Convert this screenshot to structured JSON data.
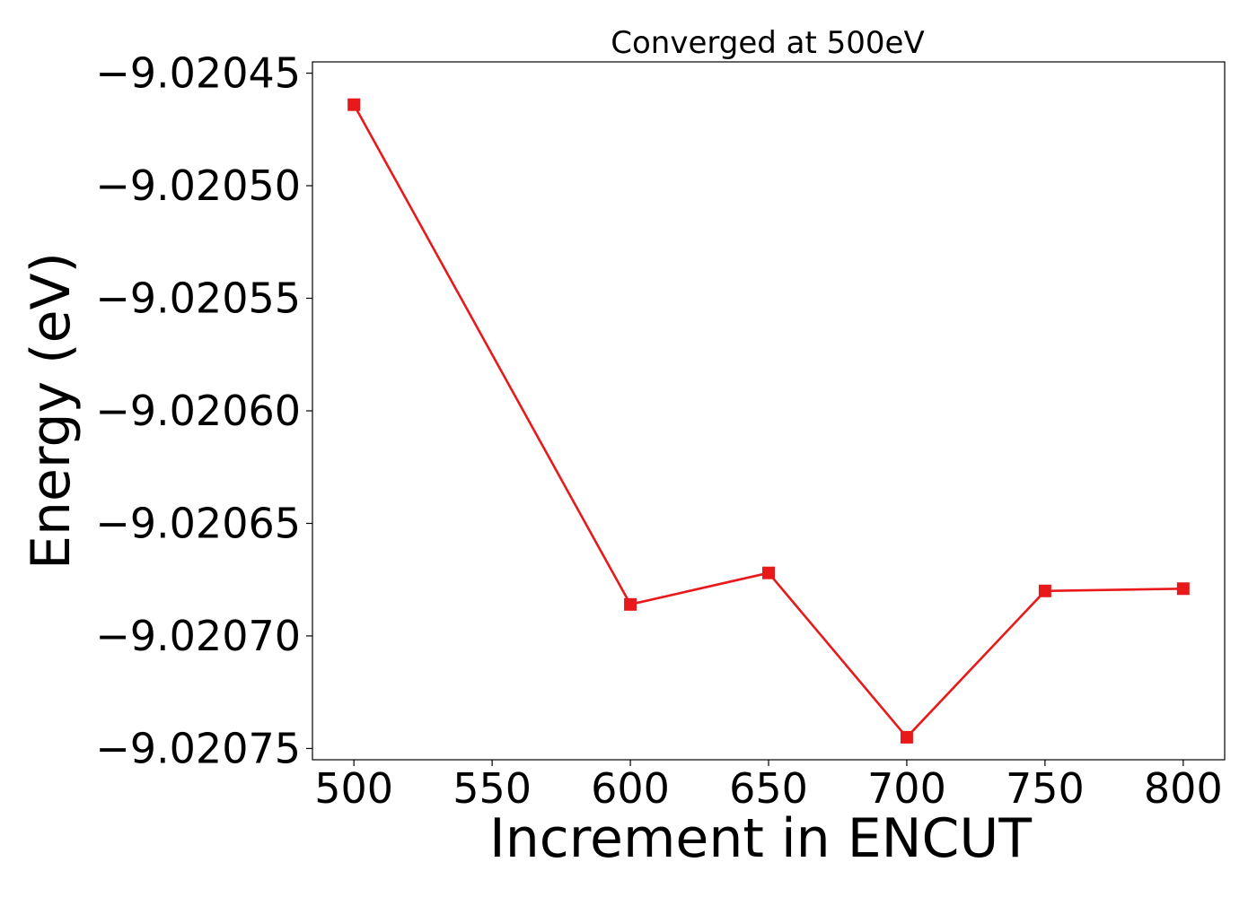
{
  "chart_data": {
    "type": "line",
    "title": "Converged at 500eV",
    "xlabel": "Increment in ENCUT",
    "ylabel": "Energy (eV)",
    "x": [
      500,
      600,
      650,
      700,
      750,
      800
    ],
    "series": [
      {
        "values": [
          -9.020464,
          -9.020686,
          -9.020672,
          -9.020745,
          -9.02068,
          -9.020679
        ],
        "color": "#e8191a",
        "marker": "square"
      }
    ],
    "x_ticks": [
      500,
      550,
      600,
      650,
      700,
      750,
      800
    ],
    "x_tick_labels": [
      "500",
      "550",
      "600",
      "650",
      "700",
      "750",
      "800"
    ],
    "y_ticks": [
      -9.02045,
      -9.0205,
      -9.02055,
      -9.0206,
      -9.02065,
      -9.0207,
      -9.02075
    ],
    "y_tick_labels": [
      "−9.02045",
      "−9.02050",
      "−9.02055",
      "−9.02060",
      "−9.02065",
      "−9.02070",
      "−9.02075"
    ],
    "xlim": [
      485,
      815
    ],
    "ylim": [
      -9.020755,
      -9.020445
    ],
    "grid": false,
    "legend": "none"
  }
}
